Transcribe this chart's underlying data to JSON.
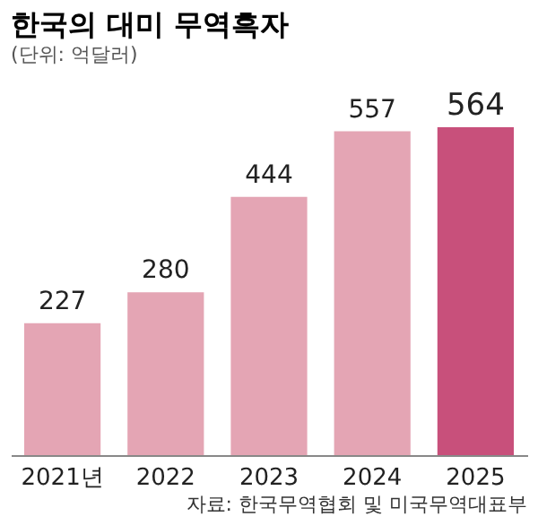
{
  "chart_data": {
    "type": "bar",
    "title": "한국의 대미 무역흑자",
    "subtitle": "(단위: 억달러)",
    "categories": [
      "2021년",
      "2022",
      "2023",
      "2024",
      "2025"
    ],
    "values": [
      227,
      280,
      444,
      557,
      564
    ],
    "colors": [
      "#e4a5b4",
      "#e4a5b4",
      "#e4a5b4",
      "#e4a5b4",
      "#c8507b"
    ],
    "data_labels": true,
    "annotations": [
      "자료: 한국무역협회 및 미국무역대표부"
    ]
  }
}
